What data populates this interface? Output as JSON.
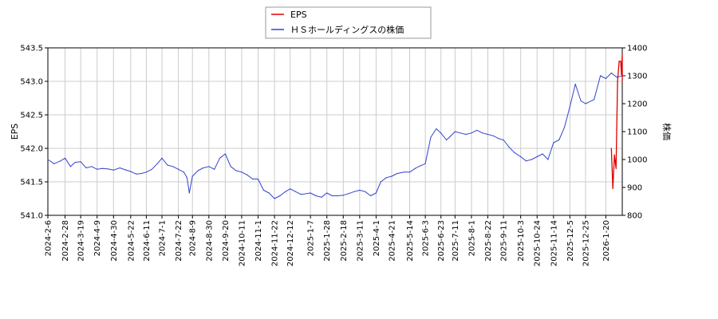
{
  "chart_data": {
    "type": "line",
    "legend": {
      "placement": "top-center",
      "entries": [
        {
          "label": "EPS",
          "color": "#dd0000"
        },
        {
          "label": "ＨＳホールディングスの株価",
          "color": "#3344cc"
        }
      ]
    },
    "ylabel_left": "EPS",
    "ylabel_right": "株価",
    "ylim_left": [
      541.0,
      543.5
    ],
    "yticks_left": [
      "541.0",
      "541.5",
      "542.0",
      "542.5",
      "543.0",
      "543.5"
    ],
    "ylim_right": [
      800,
      1400
    ],
    "yticks_right": [
      "800",
      "900",
      "1000",
      "1100",
      "1200",
      "1300",
      "1400"
    ],
    "x_range": [
      "2024-02-06",
      "2026-02-10"
    ],
    "x_ticks": [
      "2024-2-6",
      "2024-2-28",
      "2024-3-19",
      "2024-4-9",
      "2024-4-30",
      "2024-5-22",
      "2024-6-11",
      "2024-7-1",
      "2024-7-22",
      "2024-8-9",
      "2024-8-30",
      "2024-9-20",
      "2024-10-11",
      "2024-11-1",
      "2024-11-22",
      "2024-12-12",
      "2025-1-7",
      "2025-1-28",
      "2025-2-18",
      "2025-3-11",
      "2025-4-1",
      "2025-4-21",
      "2025-5-14",
      "2025-6-3",
      "2025-6-23",
      "2025-7-11",
      "2025-8-1",
      "2025-8-22",
      "2025-9-11",
      "2025-10-3",
      "2025-10-24",
      "2025-11-14",
      "2025-12-5",
      "2025-12-25",
      "2026-1-20"
    ],
    "grid": true,
    "series": [
      {
        "name": "ＨＳホールディングスの株価",
        "axis": "right",
        "color": "#3344cc",
        "x": [
          "2024-02-06",
          "2024-02-14",
          "2024-02-22",
          "2024-02-28",
          "2024-03-06",
          "2024-03-12",
          "2024-03-19",
          "2024-03-26",
          "2024-04-02",
          "2024-04-09",
          "2024-04-16",
          "2024-04-23",
          "2024-04-30",
          "2024-05-08",
          "2024-05-15",
          "2024-05-22",
          "2024-05-29",
          "2024-06-05",
          "2024-06-11",
          "2024-06-18",
          "2024-06-25",
          "2024-07-01",
          "2024-07-08",
          "2024-07-15",
          "2024-07-22",
          "2024-07-29",
          "2024-08-02",
          "2024-08-05",
          "2024-08-09",
          "2024-08-16",
          "2024-08-23",
          "2024-08-30",
          "2024-09-06",
          "2024-09-13",
          "2024-09-20",
          "2024-09-27",
          "2024-10-04",
          "2024-10-11",
          "2024-10-18",
          "2024-10-25",
          "2024-11-01",
          "2024-11-08",
          "2024-11-15",
          "2024-11-22",
          "2024-11-29",
          "2024-12-06",
          "2024-12-12",
          "2024-12-19",
          "2024-12-26",
          "2025-01-07",
          "2025-01-14",
          "2025-01-21",
          "2025-01-28",
          "2025-02-04",
          "2025-02-11",
          "2025-02-18",
          "2025-02-25",
          "2025-03-04",
          "2025-03-11",
          "2025-03-18",
          "2025-03-25",
          "2025-04-01",
          "2025-04-07",
          "2025-04-14",
          "2025-04-21",
          "2025-04-28",
          "2025-05-07",
          "2025-05-14",
          "2025-05-21",
          "2025-05-28",
          "2025-06-03",
          "2025-06-10",
          "2025-06-17",
          "2025-06-23",
          "2025-06-30",
          "2025-07-04",
          "2025-07-11",
          "2025-07-18",
          "2025-07-25",
          "2025-08-01",
          "2025-08-08",
          "2025-08-15",
          "2025-08-22",
          "2025-08-29",
          "2025-09-05",
          "2025-09-11",
          "2025-09-18",
          "2025-09-25",
          "2025-10-03",
          "2025-10-10",
          "2025-10-17",
          "2025-10-24",
          "2025-10-31",
          "2025-11-07",
          "2025-11-14",
          "2025-11-21",
          "2025-11-28",
          "2025-12-05",
          "2025-12-12",
          "2025-12-19",
          "2025-12-25",
          "2026-01-05",
          "2026-01-13",
          "2026-01-20",
          "2026-01-27",
          "2026-02-03",
          "2026-02-10"
        ],
        "values": [
          1000,
          985,
          995,
          1005,
          975,
          990,
          992,
          970,
          975,
          965,
          968,
          966,
          962,
          970,
          963,
          957,
          948,
          950,
          955,
          965,
          985,
          1005,
          980,
          975,
          965,
          955,
          935,
          880,
          940,
          960,
          970,
          975,
          965,
          1005,
          1020,
          975,
          960,
          955,
          945,
          930,
          930,
          890,
          880,
          860,
          870,
          885,
          895,
          885,
          875,
          880,
          870,
          865,
          880,
          870,
          870,
          872,
          878,
          885,
          890,
          885,
          870,
          880,
          920,
          935,
          940,
          950,
          955,
          955,
          968,
          978,
          985,
          1080,
          1110,
          1095,
          1070,
          1080,
          1100,
          1095,
          1090,
          1095,
          1105,
          1095,
          1090,
          1085,
          1075,
          1070,
          1045,
          1025,
          1010,
          995,
          1000,
          1010,
          1020,
          1000,
          1060,
          1070,
          1115,
          1190,
          1270,
          1210,
          1200,
          1215,
          1300,
          1290,
          1310,
          1295,
          1300
        ]
      },
      {
        "name": "EPS",
        "axis": "left",
        "color": "#dd0000",
        "x": [
          "2026-01-27",
          "2026-01-29",
          "2026-01-31",
          "2026-02-02",
          "2026-02-04",
          "2026-02-06",
          "2026-02-08",
          "2026-02-09",
          "2026-02-10",
          "2026-02-10"
        ],
        "values": [
          542.0,
          541.4,
          541.9,
          541.7,
          543.0,
          543.3,
          543.3,
          543.1,
          543.4,
          543.0
        ]
      }
    ]
  }
}
